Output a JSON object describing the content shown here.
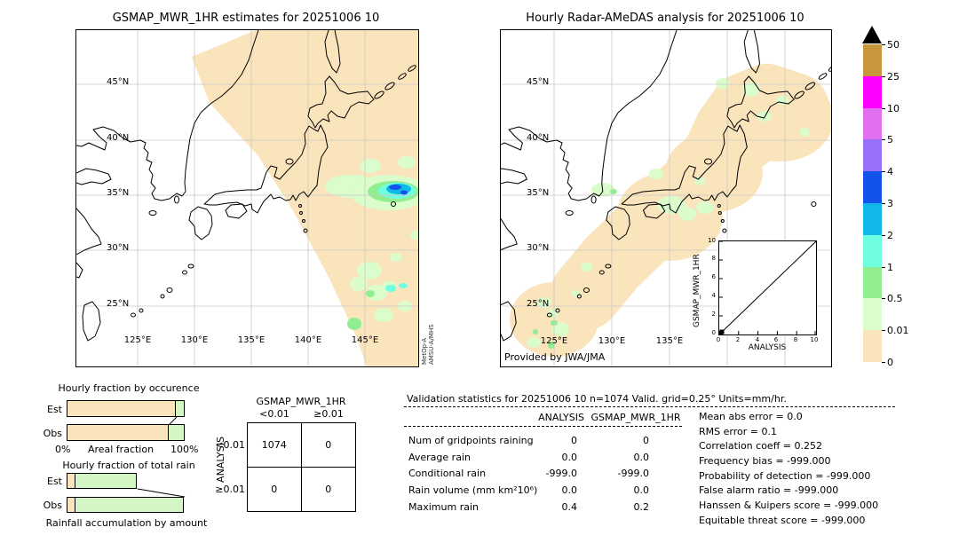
{
  "left_panel": {
    "title": "GSMAP_MWR_1HR estimates for 20251006 10",
    "lat_labels": [
      "45°N",
      "40°N",
      "35°N",
      "30°N",
      "25°N"
    ],
    "lon_labels": [
      "125°E",
      "130°E",
      "135°E",
      "140°E",
      "145°E"
    ],
    "sensor_line1": "MetOp-A",
    "sensor_line2": "AMSU-A/MHS"
  },
  "right_panel": {
    "title": "Hourly Radar-AMeDAS analysis for 20251006 10",
    "lat_labels": [
      "45°N",
      "40°N",
      "35°N",
      "30°N",
      "25°N"
    ],
    "lon_labels": [
      "125°E",
      "130°E",
      "135°E"
    ],
    "credit": "Provided by JWA/JMA",
    "inset": {
      "ylabel": "GSMAP_MWR_1HR",
      "xlabel": "ANALYSIS",
      "ticks": [
        "0",
        "2",
        "4",
        "6",
        "8",
        "10"
      ]
    }
  },
  "colorbar": {
    "ticks": [
      "50",
      "25",
      "10",
      "5",
      "4",
      "3",
      "2",
      "1",
      "0.5",
      "0.01",
      "0"
    ],
    "colors": [
      "#c8963c",
      "#ff00ff",
      "#e070f0",
      "#9870f8",
      "#1353eb",
      "#0fb8e8",
      "#6fffe0",
      "#90ee90",
      "#dbfccb",
      "#fae4bb"
    ]
  },
  "occurrence_chart": {
    "title": "Hourly fraction by occurence",
    "row_labels": [
      "Est",
      "Obs"
    ],
    "dry_pct": [
      93.2,
      87.2
    ],
    "wet_pct": [
      6.8,
      12.8
    ],
    "x_left": "0%",
    "x_center": "Areal fraction",
    "x_right": "100%"
  },
  "totalrain_chart": {
    "title": "Hourly fraction of total rain",
    "row_labels": [
      "Est",
      "Obs"
    ],
    "tan_pct": [
      7.5,
      7.5
    ],
    "green_pct": [
      52.5,
      92.5
    ],
    "caption": "Rainfall accumulation by amount"
  },
  "contingency": {
    "col_title": "GSMAP_MWR_1HR",
    "row_title": "ANALYSIS",
    "col_labels": [
      "<0.01",
      "≥0.01"
    ],
    "row_labels": [
      "<0.01",
      "≥0.01"
    ],
    "cells": [
      [
        "1074",
        "0"
      ],
      [
        "0",
        "0"
      ]
    ]
  },
  "stats": {
    "header": "Validation statistics for 20251006 10  n=1074 Valid. grid=0.25° Units=mm/hr.",
    "col1": "ANALYSIS",
    "col2": "GSMAP_MWR_1HR",
    "rows": [
      {
        "label": "Num of gridpoints raining",
        "a": "0",
        "g": "0"
      },
      {
        "label": "Average rain",
        "a": "0.0",
        "g": "0.0"
      },
      {
        "label": "Conditional rain",
        "a": "-999.0",
        "g": "-999.0"
      },
      {
        "label": "Rain volume (mm km²10⁶)",
        "a": "0.0",
        "g": "0.0"
      },
      {
        "label": "Maximum rain",
        "a": "0.4",
        "g": "0.2"
      }
    ],
    "scores": [
      "Mean abs error =    0.0",
      "RMS error =    0.1",
      "Correlation coeff =  0.252",
      "Frequency bias = -999.000",
      "Probability of detection = -999.000",
      "False alarm ratio = -999.000",
      "Hanssen & Kuipers score = -999.000",
      "Equitable threat score = -999.000"
    ]
  },
  "chart_data": [
    {
      "type": "heatmap",
      "title": "GSMAP_MWR_1HR estimates for 20251006 10",
      "x_ticks": [
        "125°E",
        "130°E",
        "135°E",
        "140°E",
        "145°E"
      ],
      "y_ticks": [
        "45°N",
        "40°N",
        "35°N",
        "30°N",
        "25°N"
      ],
      "legend_scale_mm_hr": [
        0,
        0.01,
        0.5,
        1,
        2,
        3,
        4,
        5,
        10,
        25,
        50
      ],
      "annotation": "MetOp-A AMSU-A/MHS swath (0 mm/hr background) with rain cell near 35N,142E peaking 3-4 mm/hr and light patches 0.01-2 mm/hr near 29-31N,141-143E"
    },
    {
      "type": "heatmap",
      "title": "Hourly Radar-AMeDAS analysis for 20251006 10",
      "x_ticks": [
        "125°E",
        "130°E",
        "135°E"
      ],
      "y_ticks": [
        "45°N",
        "40°N",
        "35°N",
        "30°N",
        "25°N"
      ],
      "annotation": "Radar coverage band along Japan archipelago, mostly 0 mm/hr with scattered 0.01-1 mm/hr patches"
    },
    {
      "type": "scatter",
      "xlabel": "ANALYSIS",
      "ylabel": "GSMAP_MWR_1HR",
      "xlim": [
        0,
        10
      ],
      "ylim": [
        0,
        10
      ],
      "points": [
        [
          0.2,
          0.2
        ]
      ],
      "diagonal_line": true
    },
    {
      "type": "bar",
      "title": "Hourly fraction by occurence",
      "categories": [
        "Est",
        "Obs"
      ],
      "series": [
        {
          "name": "no rain fraction %",
          "values": [
            93.2,
            87.2
          ]
        },
        {
          "name": "raining fraction %",
          "values": [
            6.8,
            12.8
          ]
        }
      ],
      "xlabel": "Areal fraction",
      "xlim": [
        0,
        100
      ]
    },
    {
      "type": "bar",
      "title": "Hourly fraction of total rain",
      "categories": [
        "Est",
        "Obs"
      ],
      "series": [
        {
          "name": "low amount %",
          "values": [
            7.5,
            7.5
          ]
        },
        {
          "name": "accumulated fraction %",
          "values": [
            52.5,
            92.5
          ]
        }
      ],
      "xlabel": "Rainfall accumulation by amount"
    },
    {
      "type": "table",
      "title": "Contingency GSMAP_MWR_1HR vs ANALYSIS",
      "columns": [
        "<0.01",
        "≥0.01"
      ],
      "rows": [
        "<0.01",
        "≥0.01"
      ],
      "values": [
        [
          1074,
          0
        ],
        [
          0,
          0
        ]
      ]
    },
    {
      "type": "table",
      "title": "Validation statistics for 20251006 10 n=1074",
      "columns": [
        "ANALYSIS",
        "GSMAP_MWR_1HR"
      ],
      "rows": [
        "Num of gridpoints raining",
        "Average rain",
        "Conditional rain",
        "Rain volume (mm km²10⁶)",
        "Maximum rain"
      ],
      "values": [
        [
          0,
          0
        ],
        [
          0.0,
          0.0
        ],
        [
          -999.0,
          -999.0
        ],
        [
          0.0,
          0.0
        ],
        [
          0.4,
          0.2
        ]
      ],
      "scores": {
        "mean_abs_error": 0.0,
        "rms_error": 0.1,
        "correlation_coeff": 0.252,
        "frequency_bias": -999.0,
        "probability_of_detection": -999.0,
        "false_alarm_ratio": -999.0,
        "hanssen_kuipers": -999.0,
        "equitable_threat": -999.0
      }
    }
  ]
}
